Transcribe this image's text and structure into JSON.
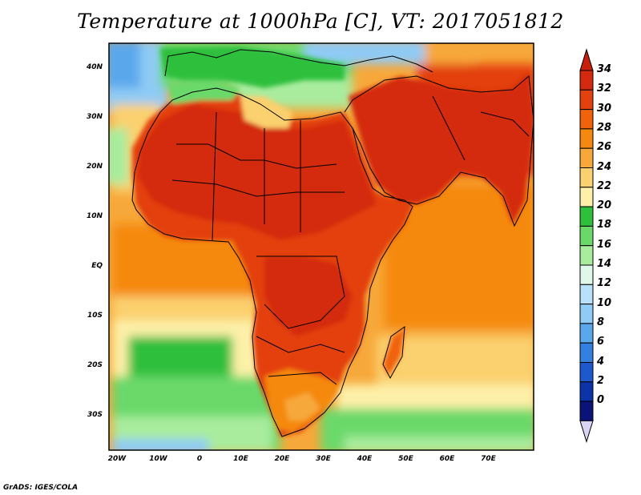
{
  "title": "Temperature at 1000hPa [C], VT: 2017051812",
  "map": {
    "lat_ticks": [
      "40N",
      "30N",
      "20N",
      "10N",
      "EQ",
      "10S",
      "20S",
      "30S"
    ],
    "lon_ticks": [
      "20W",
      "10W",
      "0",
      "10E",
      "20E",
      "30E",
      "40E",
      "50E",
      "60E",
      "70E"
    ]
  },
  "colorbar": {
    "labels": [
      "34",
      "32",
      "30",
      "28",
      "26",
      "24",
      "22",
      "20",
      "18",
      "16",
      "14",
      "12",
      "10",
      "8",
      "6",
      "4",
      "2",
      "0"
    ],
    "colors": [
      "#d42a10",
      "#e3410d",
      "#f0620c",
      "#f5890f",
      "#f7a83a",
      "#fbd06e",
      "#fdf0a8",
      "#2fbf3c",
      "#6bd96a",
      "#a9ec9e",
      "#dff8ea",
      "#b9e2fa",
      "#8fcbf5",
      "#5aa7ec",
      "#3380e0",
      "#1d58cc",
      "#0d33a8",
      "#0a1478"
    ]
  },
  "footer": "GrADS: IGES/COLA"
}
